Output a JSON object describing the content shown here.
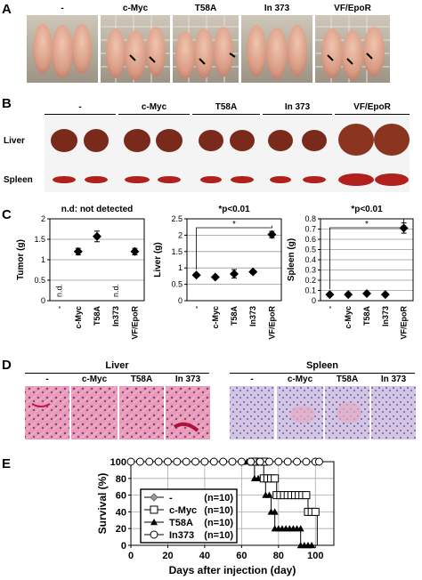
{
  "panels": {
    "A": {
      "label": "A",
      "groups": [
        "-",
        "c-Myc",
        "T58A",
        "In 373",
        "VF/EpoR"
      ]
    },
    "B": {
      "label": "B",
      "groups": [
        "-",
        "c-Myc",
        "T58A",
        "In 373",
        "VF/EpoR"
      ],
      "rows": [
        "Liver",
        "Spleen"
      ]
    },
    "C": {
      "label": "C"
    },
    "D": {
      "label": "D",
      "tissues": [
        "Liver",
        "Spleen"
      ],
      "groups": [
        "-",
        "c-Myc",
        "T58A",
        "In 373"
      ]
    },
    "E": {
      "label": "E"
    }
  },
  "chart_data": [
    {
      "type": "scatter",
      "title": "n.d: not detected",
      "ylabel": "Tumor (g)",
      "categories": [
        "-",
        "c-Myc",
        "T58A",
        "In373",
        "VF/EpoR"
      ],
      "values": [
        null,
        1.2,
        1.57,
        null,
        1.2
      ],
      "errors": [
        null,
        0.08,
        0.13,
        null,
        0.08
      ],
      "annotations": [
        "n.d.",
        "",
        "",
        "n.d.",
        ""
      ],
      "ylim": [
        0,
        2
      ],
      "yticks": [
        0,
        0.5,
        1,
        1.5,
        2
      ],
      "ytick_labels": [
        "0",
        "0.5",
        "1",
        "1.5",
        "2"
      ],
      "grid": true
    },
    {
      "type": "scatter",
      "title": "*p<0.01",
      "ylabel": "Liver (g)",
      "categories": [
        "-",
        "c-Myc",
        "T58A",
        "In373",
        "VF/EpoR"
      ],
      "values": [
        0.78,
        0.72,
        0.82,
        0.88,
        2.02
      ],
      "errors": [
        0.05,
        0.04,
        0.13,
        0.05,
        0.1
      ],
      "significance": "*",
      "ylim": [
        0,
        2.5
      ],
      "yticks": [
        0,
        0.5,
        1,
        1.5,
        2,
        2.5
      ],
      "ytick_labels": [
        "0",
        "0.5",
        "1",
        "1.5",
        "2",
        "2.5"
      ],
      "grid": true
    },
    {
      "type": "scatter",
      "title": "*p<0.01",
      "ylabel": "Spleen (g)",
      "categories": [
        "-",
        "c-Myc",
        "T58A",
        "In373",
        "VF/EpoR"
      ],
      "values": [
        0.06,
        0.06,
        0.07,
        0.06,
        0.71
      ],
      "errors": [
        0.01,
        0.01,
        0.01,
        0.01,
        0.05
      ],
      "significance": "*",
      "ylim": [
        0,
        0.8
      ],
      "yticks": [
        0,
        0.1,
        0.2,
        0.3,
        0.4,
        0.5,
        0.6,
        0.7,
        0.8
      ],
      "ytick_labels": [
        "0",
        "0.1",
        "0.2",
        "0.3",
        "0.4",
        "0.5",
        "0.6",
        "0.7",
        "0.8"
      ],
      "grid": true
    },
    {
      "type": "line",
      "xlabel": "Days after injection (day)",
      "ylabel": "Survival (%)",
      "xlim": [
        0,
        110
      ],
      "ylim": [
        0,
        100
      ],
      "xticks": [
        0,
        20,
        40,
        60,
        80,
        100
      ],
      "yticks": [
        0,
        20,
        40,
        60,
        80,
        100
      ],
      "grid": true,
      "legend_position": "inside-lower-left",
      "series": [
        {
          "name": "-",
          "n_label": "(n=10)",
          "marker": "diamond-grey",
          "x": [
            0,
            5,
            10,
            15,
            20,
            25,
            30,
            35,
            40,
            45,
            50,
            55,
            60,
            65,
            70,
            75,
            80,
            85,
            90,
            95,
            100,
            102
          ],
          "y": [
            100,
            100,
            100,
            100,
            100,
            100,
            100,
            100,
            100,
            100,
            100,
            100,
            100,
            100,
            100,
            100,
            100,
            100,
            100,
            100,
            100,
            100
          ]
        },
        {
          "name": "c-Myc",
          "n_label": "(n=10)",
          "marker": "square-open",
          "x": [
            0,
            72,
            72,
            79,
            79,
            96,
            96,
            101,
            101
          ],
          "y": [
            100,
            100,
            80,
            80,
            60,
            60,
            40,
            40,
            0
          ]
        },
        {
          "name": "T58A",
          "n_label": "(n=10)",
          "marker": "triangle-filled",
          "x": [
            0,
            67,
            67,
            73,
            73,
            76,
            76,
            78,
            78,
            92,
            92,
            99
          ],
          "y": [
            100,
            100,
            80,
            80,
            60,
            60,
            40,
            40,
            20,
            20,
            0,
            0
          ]
        },
        {
          "name": "In373",
          "n_label": "(n=10)",
          "marker": "circle-open",
          "x": [
            0,
            5,
            10,
            15,
            20,
            25,
            30,
            35,
            40,
            45,
            50,
            55,
            60,
            65,
            70,
            75,
            80,
            85,
            90,
            95,
            100,
            102
          ],
          "y": [
            100,
            100,
            100,
            100,
            100,
            100,
            100,
            100,
            100,
            100,
            100,
            100,
            100,
            100,
            100,
            100,
            100,
            100,
            100,
            100,
            100,
            100
          ]
        }
      ]
    }
  ]
}
